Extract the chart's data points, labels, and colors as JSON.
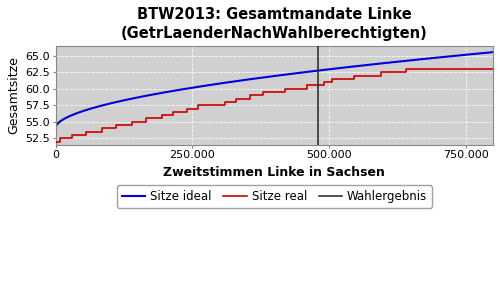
{
  "title": "BTW2013: Gesamtmandate Linke\n(GetrLaenderNachWahlberechtigten)",
  "xlabel": "Zweitstimmen Linke in Sachsen",
  "ylabel": "Gesamtsitze",
  "plot_bg_color": "#d0d0d0",
  "fig_bg_color": "#ffffff",
  "xlim": [
    0,
    800000
  ],
  "ylim": [
    51.5,
    66.5
  ],
  "yticks": [
    52.5,
    55.0,
    57.5,
    60.0,
    62.5,
    65.0
  ],
  "xticks": [
    0,
    250000,
    500000,
    750000
  ],
  "wahlergebnis_x": 480000,
  "ideal_color": "#0000dd",
  "real_color": "#cc0000",
  "vline_color": "#333333",
  "legend_labels": [
    "Sitze real",
    "Sitze ideal",
    "Wahlergebnis"
  ]
}
